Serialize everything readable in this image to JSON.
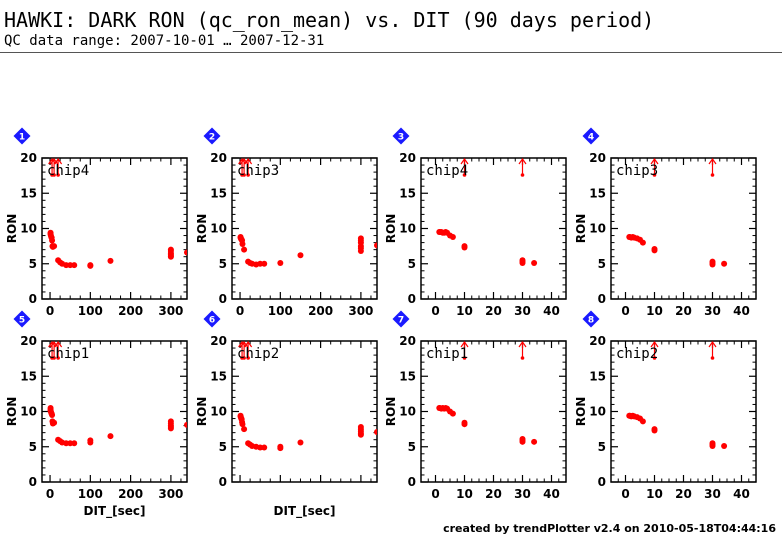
{
  "header": {
    "title": "HAWKI: DARK RON (qc_ron_mean) vs. DIT (90 days period)",
    "subtitle": "QC data range: 2007-10-01 … 2007-12-31"
  },
  "footer": {
    "text": "created by trendPlotter v2.4 on 2010-05-18T04:44:16"
  },
  "colors": {
    "points": "#ff0000",
    "badge": "#1a1aff",
    "axis": "#000000"
  },
  "chart_data": [
    {
      "type": "scatter",
      "badge": "1",
      "label": "chip4",
      "ylabel": "RON",
      "xlabel": "",
      "xlim": [
        -20,
        340
      ],
      "ylim": [
        0,
        20
      ],
      "xticks": [
        0,
        100,
        200,
        300
      ],
      "xticks_shown": true,
      "yticks": [
        0,
        5,
        10,
        15,
        20
      ],
      "points": [
        [
          1.3,
          9.4
        ],
        [
          1.3,
          9.3
        ],
        [
          1.3,
          9.2
        ],
        [
          2,
          9.0
        ],
        [
          3,
          8.8
        ],
        [
          4,
          8.7
        ],
        [
          5,
          8.3
        ],
        [
          6,
          7.5
        ],
        [
          7,
          7.4
        ],
        [
          10,
          7.5
        ],
        [
          20,
          5.5
        ],
        [
          25,
          5.2
        ],
        [
          30,
          5.0
        ],
        [
          40,
          4.8
        ],
        [
          50,
          4.8
        ],
        [
          60,
          4.8
        ],
        [
          100,
          4.8
        ],
        [
          100,
          4.7
        ],
        [
          150,
          5.4
        ],
        [
          300,
          7.0
        ],
        [
          300,
          6.8
        ],
        [
          300,
          6.5
        ],
        [
          300,
          6.3
        ],
        [
          300,
          6.1
        ],
        [
          300,
          6.0
        ],
        [
          340,
          6.6
        ]
      ],
      "arrows": [
        5,
        10,
        20
      ],
      "arrow_dims": [
        2
      ]
    },
    {
      "type": "scatter",
      "badge": "2",
      "label": "chip3",
      "ylabel": "RON",
      "xlabel": "",
      "xlim": [
        -20,
        340
      ],
      "ylim": [
        0,
        20
      ],
      "xticks": [
        0,
        100,
        200,
        300
      ],
      "xticks_shown": true,
      "yticks": [
        0,
        5,
        10,
        15,
        20
      ],
      "points": [
        [
          1.3,
          8.8
        ],
        [
          1.3,
          8.7
        ],
        [
          2,
          8.6
        ],
        [
          3,
          8.5
        ],
        [
          4,
          8.4
        ],
        [
          5,
          8.3
        ],
        [
          6,
          7.8
        ],
        [
          10,
          7.0
        ],
        [
          20,
          5.3
        ],
        [
          25,
          5.1
        ],
        [
          30,
          5.0
        ],
        [
          40,
          4.9
        ],
        [
          50,
          5.0
        ],
        [
          60,
          5.0
        ],
        [
          100,
          5.1
        ],
        [
          150,
          6.2
        ],
        [
          300,
          8.6
        ],
        [
          300,
          8.3
        ],
        [
          300,
          8.0
        ],
        [
          300,
          7.5
        ],
        [
          300,
          7.2
        ],
        [
          300,
          6.8
        ],
        [
          340,
          7.6
        ]
      ],
      "arrows": [
        5,
        10,
        20
      ],
      "arrow_dims": [
        2
      ]
    },
    {
      "type": "scatter",
      "badge": "3",
      "label": "chip4",
      "ylabel": "RON",
      "xlabel": "",
      "xlim": [
        -5,
        45
      ],
      "ylim": [
        0,
        20
      ],
      "xticks": [
        0,
        10,
        20,
        30,
        40
      ],
      "xticks_shown": true,
      "yticks": [
        0,
        5,
        10,
        15,
        20
      ],
      "points": [
        [
          1.3,
          9.5
        ],
        [
          1.5,
          9.5
        ],
        [
          2,
          9.5
        ],
        [
          2.5,
          9.4
        ],
        [
          3,
          9.4
        ],
        [
          3.5,
          9.5
        ],
        [
          4,
          9.4
        ],
        [
          5,
          9.0
        ],
        [
          6,
          8.8
        ],
        [
          10,
          7.5
        ],
        [
          10,
          7.3
        ],
        [
          30,
          5.5
        ],
        [
          30,
          5.3
        ],
        [
          30,
          5.1
        ],
        [
          34,
          5.1
        ]
      ],
      "arrows": [
        10,
        30
      ],
      "arrow_dims": [
        2
      ]
    },
    {
      "type": "scatter",
      "badge": "4",
      "label": "chip3",
      "ylabel": "RON",
      "xlabel": "",
      "xlim": [
        -5,
        45
      ],
      "ylim": [
        0,
        20
      ],
      "xticks": [
        0,
        10,
        20,
        30,
        40
      ],
      "xticks_shown": true,
      "yticks": [
        0,
        5,
        10,
        15,
        20
      ],
      "points": [
        [
          1.3,
          8.8
        ],
        [
          1.5,
          8.8
        ],
        [
          2,
          8.7
        ],
        [
          2.5,
          8.8
        ],
        [
          3,
          8.7
        ],
        [
          4,
          8.6
        ],
        [
          5,
          8.4
        ],
        [
          6,
          8.0
        ],
        [
          10,
          7.1
        ],
        [
          10,
          6.9
        ],
        [
          30,
          5.3
        ],
        [
          30,
          5.1
        ],
        [
          30,
          4.9
        ],
        [
          34,
          5.0
        ]
      ],
      "arrows": [
        10,
        30
      ],
      "arrow_dims": [
        2
      ]
    },
    {
      "type": "scatter",
      "badge": "5",
      "label": "chip1",
      "ylabel": "RON",
      "xlabel": "DIT_[sec]",
      "xlim": [
        -20,
        340
      ],
      "ylim": [
        0,
        20
      ],
      "xticks": [
        0,
        100,
        200,
        300
      ],
      "xticks_shown": true,
      "yticks": [
        0,
        5,
        10,
        15,
        20
      ],
      "points": [
        [
          1.3,
          10.5
        ],
        [
          1.3,
          10.3
        ],
        [
          1.3,
          10.1
        ],
        [
          2,
          10.0
        ],
        [
          3,
          9.8
        ],
        [
          4,
          9.7
        ],
        [
          5,
          9.5
        ],
        [
          6,
          8.6
        ],
        [
          7,
          8.3
        ],
        [
          10,
          8.4
        ],
        [
          20,
          6.0
        ],
        [
          25,
          5.8
        ],
        [
          30,
          5.6
        ],
        [
          40,
          5.5
        ],
        [
          50,
          5.5
        ],
        [
          60,
          5.5
        ],
        [
          100,
          5.9
        ],
        [
          100,
          5.6
        ],
        [
          150,
          6.5
        ],
        [
          300,
          8.6
        ],
        [
          300,
          8.3
        ],
        [
          300,
          8.0
        ],
        [
          300,
          7.8
        ],
        [
          300,
          7.6
        ],
        [
          340,
          8.1
        ]
      ],
      "arrows": [
        5,
        10,
        20
      ],
      "arrow_dims": [
        2
      ]
    },
    {
      "type": "scatter",
      "badge": "6",
      "label": "chip2",
      "ylabel": "RON",
      "xlabel": "DIT_[sec]",
      "xlim": [
        -20,
        340
      ],
      "ylim": [
        0,
        20
      ],
      "xticks": [
        0,
        100,
        200,
        300
      ],
      "xticks_shown": false,
      "yticks": [
        0,
        5,
        10,
        15,
        20
      ],
      "points": [
        [
          1.3,
          9.4
        ],
        [
          1.3,
          9.3
        ],
        [
          2,
          9.2
        ],
        [
          3,
          9.0
        ],
        [
          4,
          8.9
        ],
        [
          5,
          8.5
        ],
        [
          6,
          8.2
        ],
        [
          10,
          7.5
        ],
        [
          20,
          5.5
        ],
        [
          25,
          5.3
        ],
        [
          30,
          5.1
        ],
        [
          40,
          5.0
        ],
        [
          50,
          4.9
        ],
        [
          60,
          4.9
        ],
        [
          100,
          5.0
        ],
        [
          100,
          4.8
        ],
        [
          150,
          5.6
        ],
        [
          300,
          7.8
        ],
        [
          300,
          7.5
        ],
        [
          300,
          7.2
        ],
        [
          300,
          6.9
        ],
        [
          300,
          6.7
        ],
        [
          340,
          7.1
        ]
      ],
      "arrows": [
        5,
        10,
        20
      ],
      "arrow_dims": [
        2
      ]
    },
    {
      "type": "scatter",
      "badge": "7",
      "label": "chip1",
      "ylabel": "RON",
      "xlabel": "",
      "xlim": [
        -5,
        45
      ],
      "ylim": [
        0,
        20
      ],
      "xticks": [
        0,
        10,
        20,
        30,
        40
      ],
      "xticks_shown": true,
      "yticks": [
        0,
        5,
        10,
        15,
        20
      ],
      "points": [
        [
          1.3,
          10.5
        ],
        [
          1.5,
          10.5
        ],
        [
          2,
          10.4
        ],
        [
          2.5,
          10.5
        ],
        [
          3,
          10.4
        ],
        [
          3.5,
          10.5
        ],
        [
          4,
          10.4
        ],
        [
          5,
          10.0
        ],
        [
          6,
          9.7
        ],
        [
          10,
          8.4
        ],
        [
          10,
          8.2
        ],
        [
          30,
          6.1
        ],
        [
          30,
          5.9
        ],
        [
          30,
          5.7
        ],
        [
          34,
          5.7
        ]
      ],
      "arrows": [
        10,
        30
      ],
      "arrow_dims": [
        2
      ]
    },
    {
      "type": "scatter",
      "badge": "8",
      "label": "chip2",
      "ylabel": "RON",
      "xlabel": "",
      "xlim": [
        -5,
        45
      ],
      "ylim": [
        0,
        20
      ],
      "xticks": [
        0,
        10,
        20,
        30,
        40
      ],
      "xticks_shown": true,
      "yticks": [
        0,
        5,
        10,
        15,
        20
      ],
      "points": [
        [
          1.3,
          9.4
        ],
        [
          1.5,
          9.4
        ],
        [
          2,
          9.3
        ],
        [
          2.5,
          9.4
        ],
        [
          3,
          9.3
        ],
        [
          4,
          9.2
        ],
        [
          5,
          9.0
        ],
        [
          6,
          8.6
        ],
        [
          10,
          7.5
        ],
        [
          10,
          7.3
        ],
        [
          30,
          5.5
        ],
        [
          30,
          5.3
        ],
        [
          30,
          5.1
        ],
        [
          34,
          5.1
        ]
      ],
      "arrows": [
        10,
        30
      ],
      "arrow_dims": [
        2
      ]
    }
  ]
}
